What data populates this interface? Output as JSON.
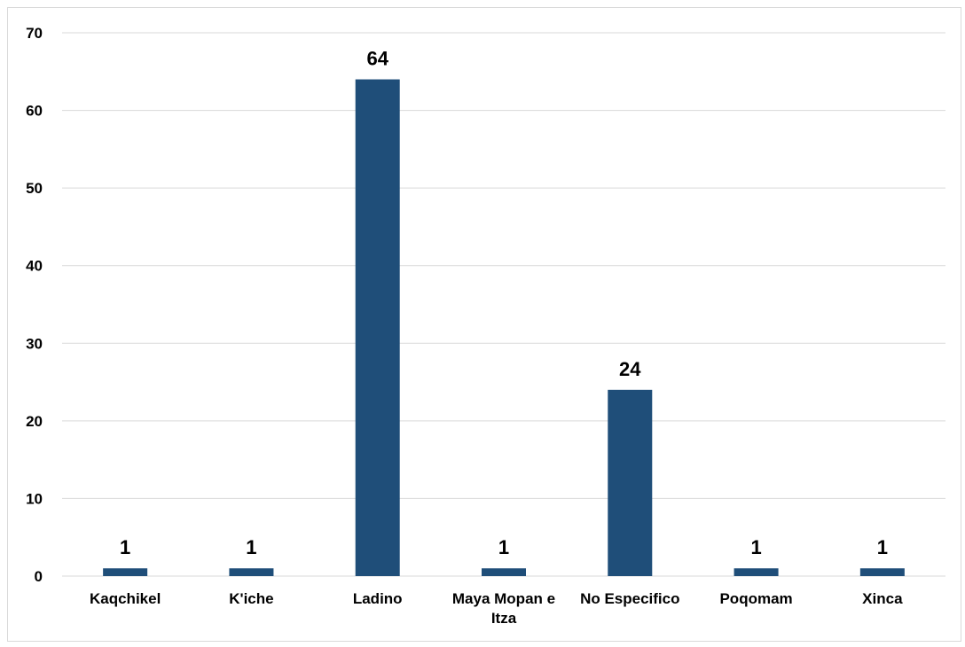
{
  "chart_data": {
    "type": "bar",
    "title": "",
    "xlabel": "",
    "ylabel": "",
    "categories": [
      "Kaqchikel",
      "K'iche",
      "Ladino",
      "Maya Mopan e Itza",
      "No Especifico",
      "Poqomam",
      "Xinca"
    ],
    "values": [
      1,
      1,
      64,
      1,
      24,
      1,
      1
    ],
    "data_labels": [
      "1",
      "1",
      "64",
      "1",
      "24",
      "1",
      "1"
    ],
    "ylim": [
      0,
      70
    ],
    "yticks": [
      "0",
      "10",
      "20",
      "30",
      "40",
      "50",
      "60",
      "70"
    ],
    "grid": true,
    "legend": "none",
    "bar_color": "#1f4e79",
    "grid_color": "#d9d9d9"
  }
}
